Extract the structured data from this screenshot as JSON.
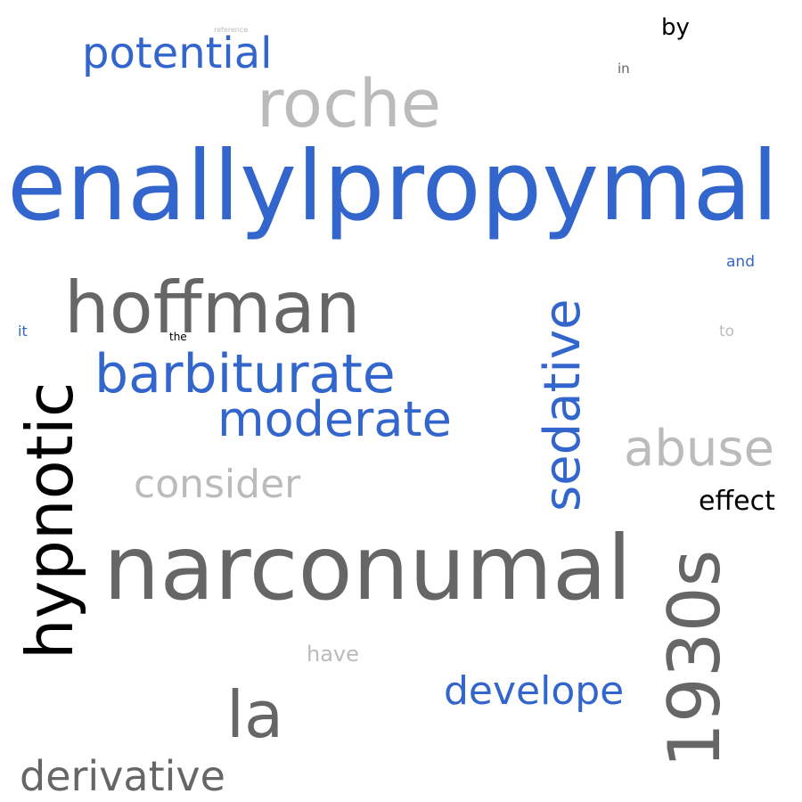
{
  "palette": {
    "blue": "#3366cc",
    "dark_gray": "#666666",
    "light_gray": "#bbbbbb",
    "black": "#000000"
  },
  "words": {
    "enallylpropymal": "enallylpropymal",
    "narconumal": "narconumal",
    "roche": "roche",
    "hoffman": "hoffman",
    "hypnotic": "hypnotic",
    "barbiturate": "barbiturate",
    "sedative": "sedative",
    "moderate": "moderate",
    "potential": "potential",
    "abuse": "abuse",
    "consider": "consider",
    "1930s": "1930s",
    "la": "la",
    "develope": "develope",
    "derivative": "derivative",
    "effect": "effect",
    "by": "by",
    "have": "have",
    "in": "in",
    "and": "and",
    "it": "it",
    "to": "to",
    "the": "the",
    "reference": "reference"
  }
}
